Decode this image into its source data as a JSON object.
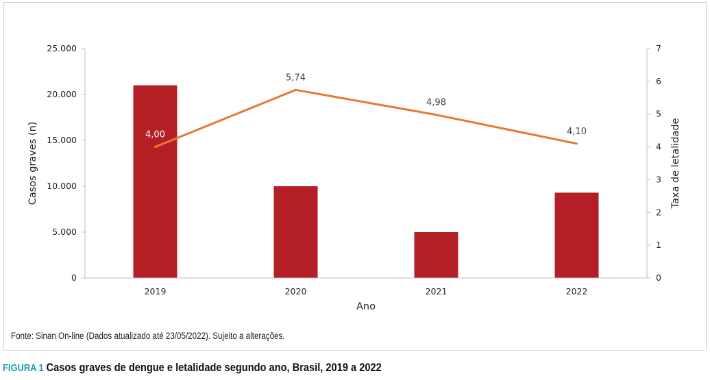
{
  "chart_data": {
    "type": "bar+line",
    "categories": [
      "2019",
      "2020",
      "2021",
      "2022"
    ],
    "series": [
      {
        "kind": "bar",
        "axis": "left",
        "values": [
          21000,
          10000,
          5000,
          9300
        ],
        "color": "#b31f24"
      },
      {
        "kind": "line",
        "axis": "right",
        "values": [
          4.0,
          5.74,
          4.98,
          4.1
        ],
        "labels": [
          "4,00",
          "5,74",
          "4,98",
          "4,10"
        ],
        "color": "#e8792e"
      }
    ],
    "xlabel": "Ano",
    "ylabel_left": "Casos graves (n)",
    "ylabel_right": "Taxa de letalidade",
    "y_left": {
      "min": 0,
      "max": 25000,
      "ticks": [
        0,
        5000,
        10000,
        15000,
        20000,
        25000
      ],
      "tick_labels": [
        "0",
        "5.000",
        "10.000",
        "15.000",
        "20.000",
        "25.000"
      ]
    },
    "y_right": {
      "min": 0,
      "max": 7,
      "ticks": [
        0,
        1,
        2,
        3,
        4,
        5,
        6,
        7
      ],
      "tick_labels": [
        "0",
        "1",
        "2",
        "3",
        "4",
        "5",
        "6",
        "7"
      ]
    },
    "grid": false,
    "legend": "none"
  },
  "source_note": "Fonte: Sinan On-line (Dados atualizado até 23/05/2022). Sujeito a alterações.",
  "caption": {
    "label": "FIGURA 1",
    "title": "Casos graves de dengue e letalidade segundo ano, Brasil, 2019 a 2022"
  },
  "colors": {
    "label_on_bar": "#ffffff",
    "label_default": "#404040",
    "axis_line": "#bfbfbf"
  }
}
